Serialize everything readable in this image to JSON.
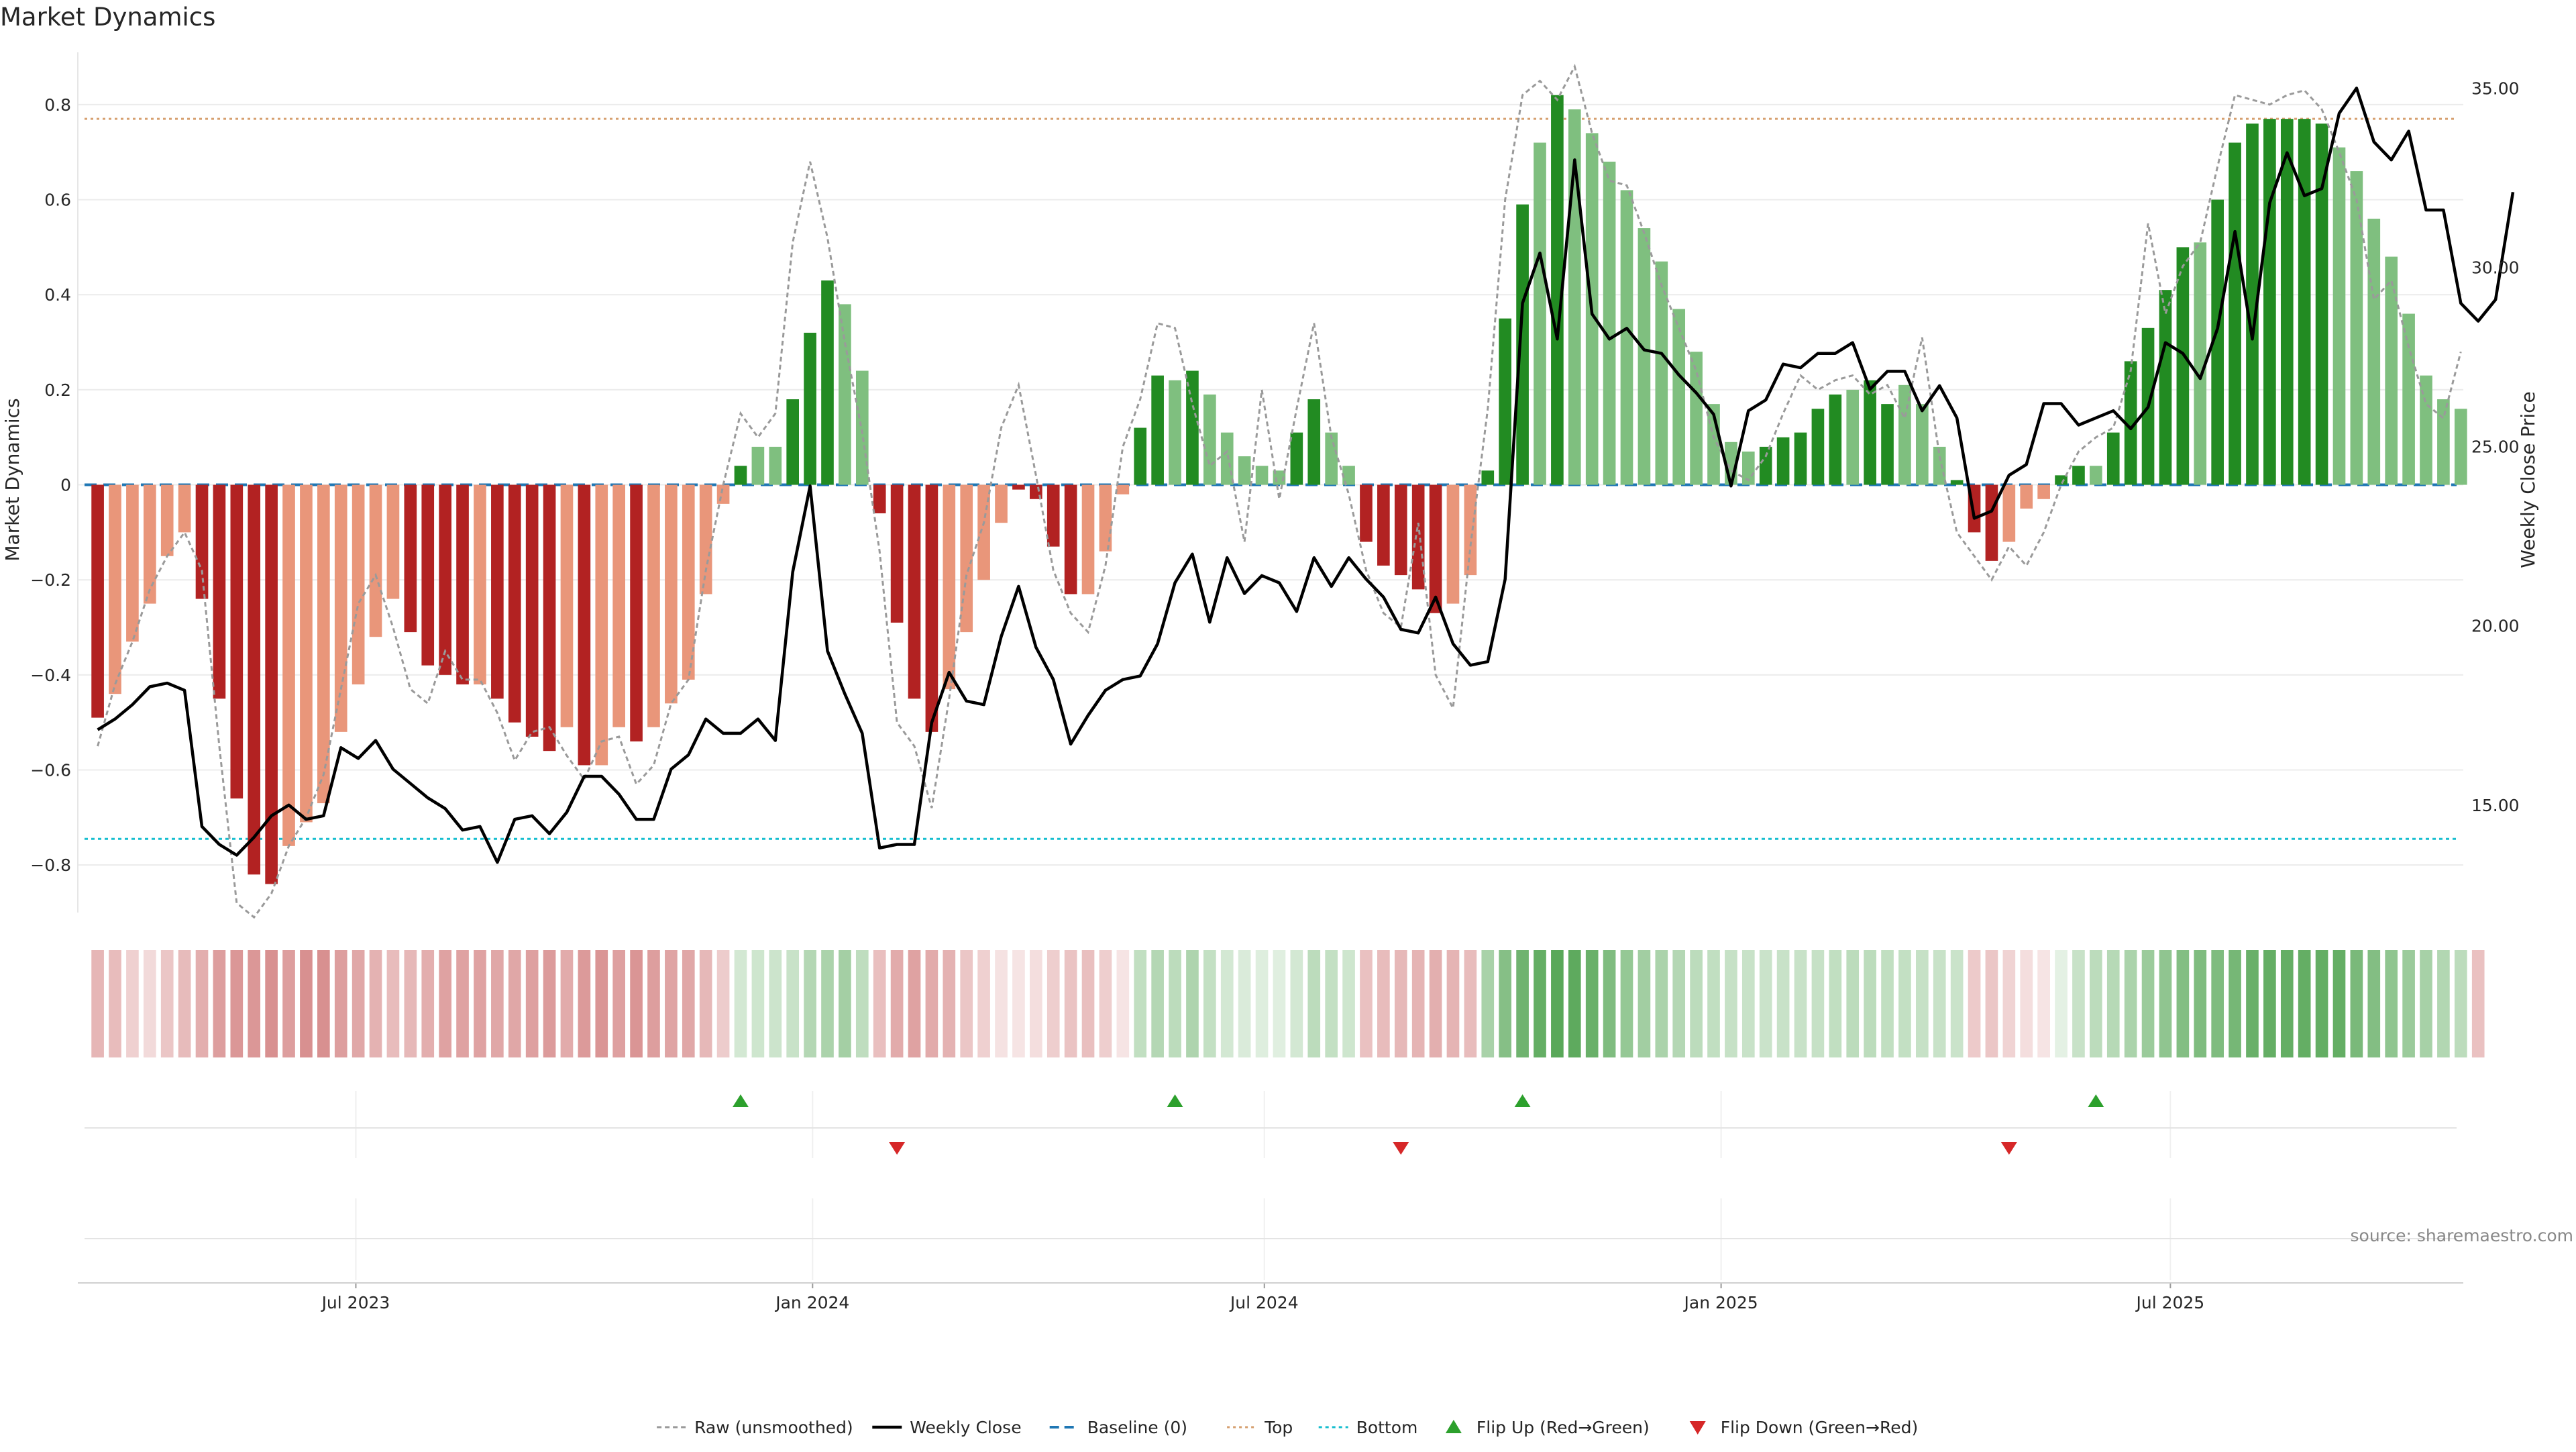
{
  "chart_data": {
    "type": "bar",
    "title": "Market Dynamics",
    "ylabel": "Market Dynamics",
    "y2label": "Weekly Close Price",
    "source": "source: sharemaestro.com",
    "ylim": [
      -0.9,
      0.91
    ],
    "y2lim": [
      12.0,
      36.0
    ],
    "yticks": [
      "−0.8",
      "−0.6",
      "−0.4",
      "−0.2",
      "0",
      "0.2",
      "0.4",
      "0.6",
      "0.8"
    ],
    "y2ticks": [
      "15.00",
      "20.00",
      "25.00",
      "30.00",
      "35.00"
    ],
    "xticks": [
      "Jul 2023",
      "Jan 2024",
      "Jul 2024",
      "Jan 2025",
      "Jul 2025"
    ],
    "xtick_dates": [
      "2023-07-01",
      "2024-01-01",
      "2024-07-01",
      "2025-01-01",
      "2025-07-01"
    ],
    "x_range": [
      "2023-03-11",
      "2025-10-27"
    ],
    "start_week": "2023-03-19",
    "top_line": 0.77,
    "bottom_line": -0.745,
    "baseline": 0,
    "colors": {
      "strong_up": "#228b22",
      "weak_up": "#7fbf7f",
      "strong_down": "#b22222",
      "weak_down": "#e9967a",
      "close": "#000000",
      "raw": "#9a9a9a",
      "baseline": "#1f77b4",
      "top": "#d6a070",
      "bottom": "#17becf",
      "flip_up": "#2ca02c",
      "flip_down": "#d62728"
    },
    "bars": [
      -0.49,
      -0.44,
      -0.33,
      -0.25,
      -0.15,
      -0.1,
      -0.24,
      -0.45,
      -0.66,
      -0.82,
      -0.84,
      -0.76,
      -0.71,
      -0.67,
      -0.52,
      -0.42,
      -0.32,
      -0.24,
      -0.31,
      -0.38,
      -0.4,
      -0.42,
      -0.42,
      -0.45,
      -0.5,
      -0.53,
      -0.56,
      -0.51,
      -0.59,
      -0.59,
      -0.51,
      -0.54,
      -0.51,
      -0.46,
      -0.41,
      -0.23,
      -0.04,
      0.04,
      0.08,
      0.08,
      0.18,
      0.32,
      0.43,
      0.38,
      0.24,
      -0.06,
      -0.29,
      -0.45,
      -0.52,
      -0.43,
      -0.31,
      -0.2,
      -0.08,
      -0.01,
      -0.03,
      -0.13,
      -0.23,
      -0.23,
      -0.14,
      -0.02,
      0.12,
      0.23,
      0.22,
      0.24,
      0.19,
      0.11,
      0.06,
      0.04,
      0.03,
      0.11,
      0.18,
      0.11,
      0.04,
      -0.12,
      -0.17,
      -0.19,
      -0.22,
      -0.27,
      -0.25,
      -0.19,
      0.03,
      0.35,
      0.59,
      0.72,
      0.82,
      0.79,
      0.74,
      0.68,
      0.62,
      0.54,
      0.47,
      0.37,
      0.28,
      0.17,
      0.09,
      0.07,
      0.08,
      0.1,
      0.11,
      0.16,
      0.19,
      0.2,
      0.22,
      0.17,
      0.21,
      0.17,
      0.08,
      0.01,
      -0.1,
      -0.16,
      -0.12,
      -0.05,
      -0.03,
      0.02,
      0.04,
      0.04,
      0.11,
      0.26,
      0.33,
      0.41,
      0.5,
      0.51,
      0.6,
      0.72,
      0.76,
      0.77,
      0.77,
      0.77,
      0.76,
      0.71,
      0.66,
      0.56,
      0.48,
      0.36,
      0.23,
      0.18,
      0.16
    ],
    "bar_strength": [
      "s",
      "w",
      "w",
      "w",
      "w",
      "w",
      "s",
      "s",
      "s",
      "s",
      "s",
      "w",
      "w",
      "w",
      "w",
      "w",
      "w",
      "w",
      "s",
      "s",
      "s",
      "s",
      "w",
      "s",
      "s",
      "s",
      "s",
      "w",
      "s",
      "w",
      "w",
      "s",
      "w",
      "w",
      "w",
      "w",
      "w",
      "s",
      "w",
      "w",
      "s",
      "s",
      "s",
      "w",
      "w",
      "s",
      "s",
      "s",
      "s",
      "w",
      "w",
      "w",
      "w",
      "s",
      "s",
      "s",
      "s",
      "w",
      "w",
      "w",
      "s",
      "s",
      "w",
      "s",
      "w",
      "w",
      "w",
      "w",
      "w",
      "s",
      "s",
      "w",
      "w",
      "s",
      "s",
      "s",
      "s",
      "s",
      "w",
      "w",
      "s",
      "s",
      "s",
      "w",
      "s",
      "w",
      "w",
      "w",
      "w",
      "w",
      "w",
      "w",
      "w",
      "w",
      "w",
      "w",
      "s",
      "s",
      "s",
      "s",
      "s",
      "w",
      "s",
      "s",
      "w",
      "w",
      "w",
      "s",
      "s",
      "s",
      "w",
      "w",
      "w",
      "s",
      "s",
      "w",
      "s",
      "s",
      "s",
      "s",
      "s",
      "w",
      "s",
      "s",
      "s",
      "s",
      "s",
      "s",
      "s",
      "w",
      "w",
      "w",
      "w",
      "w",
      "w",
      "w",
      "w",
      "w"
    ],
    "close": [
      17.1,
      17.4,
      17.8,
      18.3,
      18.4,
      18.2,
      14.4,
      13.9,
      13.6,
      14.1,
      14.7,
      15.0,
      14.6,
      14.7,
      16.6,
      16.3,
      16.8,
      16.0,
      15.6,
      15.2,
      14.9,
      14.3,
      14.4,
      13.4,
      14.6,
      14.7,
      14.2,
      14.8,
      15.8,
      15.8,
      15.3,
      14.6,
      14.6,
      16.0,
      16.4,
      17.4,
      17.0,
      17.0,
      17.4,
      16.8,
      21.5,
      23.9,
      19.3,
      18.1,
      17.0,
      13.8,
      13.9,
      13.9,
      17.3,
      18.7,
      17.9,
      17.8,
      19.7,
      21.1,
      19.4,
      18.5,
      16.7,
      17.5,
      18.2,
      18.5,
      18.6,
      19.5,
      21.2,
      22.0,
      20.1,
      21.9,
      20.9,
      21.4,
      21.2,
      20.4,
      21.9,
      21.1,
      21.9,
      21.3,
      20.8,
      19.9,
      19.8,
      20.8,
      19.5,
      18.9,
      19.0,
      21.3,
      29.0,
      30.4,
      28.0,
      33.0,
      28.7,
      28.0,
      28.3,
      27.7,
      27.6,
      27.0,
      26.5,
      25.9,
      23.9,
      26.0,
      26.3,
      27.3,
      27.2,
      27.6,
      27.6,
      27.9,
      26.6,
      27.1,
      27.1,
      26.0,
      26.7,
      25.8,
      23.0,
      23.2,
      24.2,
      24.5,
      26.2,
      26.2,
      25.6,
      25.8,
      26.0,
      25.5,
      26.1,
      27.9,
      27.6,
      26.9,
      28.3,
      31.0,
      28.0,
      31.8,
      33.2,
      32.0,
      32.2,
      34.3,
      35.0,
      33.5,
      33.0,
      33.8,
      31.6,
      31.6,
      29.0,
      28.5,
      29.1,
      32.1
    ],
    "raw": [
      -0.55,
      -0.42,
      -0.33,
      -0.22,
      -0.15,
      -0.1,
      -0.18,
      -0.55,
      -0.88,
      -0.91,
      -0.86,
      -0.76,
      -0.7,
      -0.61,
      -0.43,
      -0.25,
      -0.19,
      -0.3,
      -0.43,
      -0.46,
      -0.35,
      -0.41,
      -0.41,
      -0.48,
      -0.58,
      -0.52,
      -0.51,
      -0.57,
      -0.62,
      -0.54,
      -0.53,
      -0.63,
      -0.59,
      -0.46,
      -0.41,
      -0.18,
      -0.0,
      0.15,
      0.1,
      0.15,
      0.51,
      0.68,
      0.52,
      0.3,
      0.11,
      -0.14,
      -0.5,
      -0.55,
      -0.68,
      -0.45,
      -0.19,
      -0.08,
      0.12,
      0.21,
      0.02,
      -0.18,
      -0.27,
      -0.31,
      -0.17,
      0.08,
      0.18,
      0.34,
      0.33,
      0.17,
      0.04,
      0.07,
      -0.12,
      0.2,
      -0.03,
      0.16,
      0.34,
      0.1,
      -0.02,
      -0.18,
      -0.27,
      -0.3,
      -0.08,
      -0.4,
      -0.47,
      -0.13,
      0.16,
      0.6,
      0.82,
      0.85,
      0.81,
      0.88,
      0.74,
      0.64,
      0.63,
      0.53,
      0.42,
      0.33,
      0.24,
      0.1,
      0.03,
      0.01,
      0.06,
      0.15,
      0.23,
      0.2,
      0.22,
      0.23,
      0.19,
      0.21,
      0.14,
      0.31,
      0.06,
      -0.1,
      -0.15,
      -0.2,
      -0.13,
      -0.17,
      -0.1,
      0.0,
      0.07,
      0.1,
      0.12,
      0.24,
      0.55,
      0.36,
      0.46,
      0.51,
      0.67,
      0.82,
      0.81,
      0.8,
      0.82,
      0.83,
      0.79,
      0.7,
      0.6,
      0.39,
      0.43,
      0.29,
      0.17,
      0.14,
      0.28
    ],
    "flips_up": [
      37,
      62,
      82,
      115
    ],
    "flips_down": [
      46,
      75,
      110
    ],
    "heat": [
      0.33,
      0.3,
      0.21,
      0.17,
      0.26,
      0.31,
      0.37,
      0.44,
      0.47,
      0.47,
      0.5,
      0.44,
      0.5,
      0.5,
      0.44,
      0.4,
      0.35,
      0.3,
      0.32,
      0.37,
      0.42,
      0.42,
      0.42,
      0.4,
      0.4,
      0.43,
      0.45,
      0.38,
      0.46,
      0.48,
      0.43,
      0.48,
      0.44,
      0.41,
      0.4,
      0.32,
      0.23,
      0.2,
      0.22,
      0.23,
      0.25,
      0.34,
      0.38,
      0.41,
      0.29,
      0.29,
      0.38,
      0.42,
      0.38,
      0.35,
      0.26,
      0.21,
      0.13,
      0.12,
      0.15,
      0.22,
      0.27,
      0.29,
      0.22,
      0.12,
      0.28,
      0.34,
      0.3,
      0.37,
      0.27,
      0.2,
      0.17,
      0.15,
      0.14,
      0.2,
      0.3,
      0.27,
      0.22,
      0.28,
      0.3,
      0.32,
      0.34,
      0.36,
      0.34,
      0.3,
      0.39,
      0.55,
      0.65,
      0.7,
      0.75,
      0.73,
      0.68,
      0.58,
      0.48,
      0.42,
      0.38,
      0.34,
      0.3,
      0.28,
      0.26,
      0.25,
      0.24,
      0.25,
      0.25,
      0.26,
      0.28,
      0.3,
      0.3,
      0.28,
      0.27,
      0.26,
      0.25,
      0.24,
      0.24,
      0.26,
      0.2,
      0.15,
      0.12,
      0.12,
      0.25,
      0.3,
      0.33,
      0.38,
      0.45,
      0.5,
      0.56,
      0.58,
      0.58,
      0.62,
      0.68,
      0.7,
      0.7,
      0.7,
      0.7,
      0.7,
      0.6,
      0.56,
      0.5,
      0.45,
      0.4,
      0.35,
      0.3,
      0.28
    ],
    "legend_placement": "bottom-center",
    "legend": [
      {
        "label": "Raw (unsmoothed)",
        "style": "raw"
      },
      {
        "label": "Weekly Close",
        "style": "close"
      },
      {
        "label": "Baseline (0)",
        "style": "baseline"
      },
      {
        "label": "Top",
        "style": "top"
      },
      {
        "label": "Bottom",
        "style": "bottom"
      },
      {
        "label": "Flip Up (Red→Green)",
        "style": "flip_up"
      },
      {
        "label": "Flip Down (Green→Red)",
        "style": "flip_down"
      }
    ]
  }
}
